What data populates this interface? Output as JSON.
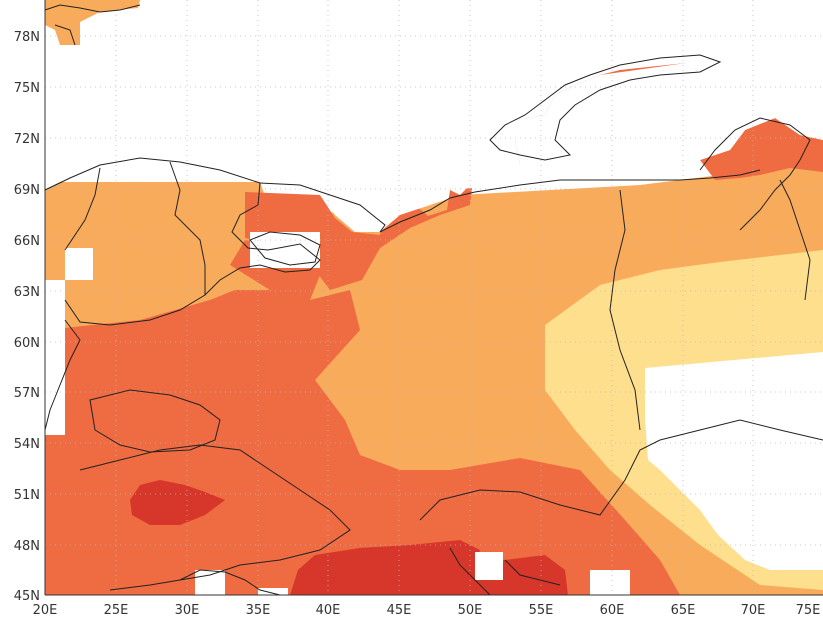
{
  "map": {
    "lat_labels": [
      "78N",
      "75N",
      "72N",
      "69N",
      "66N",
      "63N",
      "60N",
      "57N",
      "54N",
      "51N",
      "48N",
      "45N"
    ],
    "lon_labels": [
      "20E",
      "25E",
      "30E",
      "35E",
      "40E",
      "45E",
      "50E",
      "55E",
      "60E",
      "65E",
      "70E",
      "75E"
    ],
    "lat_range": [
      45,
      80
    ],
    "lon_range": [
      20,
      75
    ],
    "fill_levels": [
      {
        "level": "lowest",
        "color": "#fddf8e"
      },
      {
        "level": "low",
        "color": "#f9ab5c"
      },
      {
        "level": "high",
        "color": "#ef6b41"
      },
      {
        "level": "highest",
        "color": "#d7362a"
      }
    ],
    "missing_color": "#ffffff",
    "coastline_color": "#222222",
    "gridline_style": "dotted"
  }
}
